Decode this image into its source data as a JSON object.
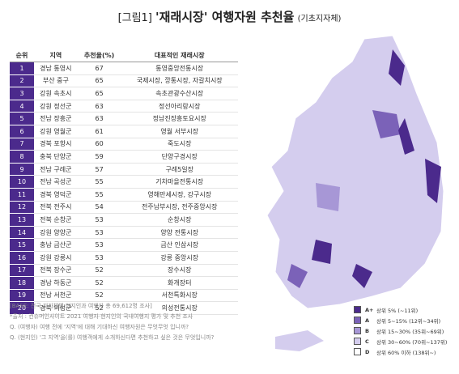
{
  "header": {
    "figure": "[그림1]",
    "title": "'재래시장' 여행자원 추천율",
    "subtitle": "(기초지자체)"
  },
  "table": {
    "columns": [
      "순위",
      "지역",
      "추천율(%)",
      "대표적인 재래시장"
    ],
    "rows": [
      [
        "1",
        "경남 통영시",
        "67",
        "통영중앙전통시장"
      ],
      [
        "2",
        "부산 중구",
        "65",
        "국제시장, 깡통시장, 자갈치시장"
      ],
      [
        "3",
        "강원 속초시",
        "65",
        "속초관광수산시장"
      ],
      [
        "4",
        "강원 정선군",
        "63",
        "정선아리랑시장"
      ],
      [
        "5",
        "전남 장흥군",
        "63",
        "정남진장흥토요시장"
      ],
      [
        "6",
        "강원 영월군",
        "61",
        "영월 서부시장"
      ],
      [
        "7",
        "경북 포항시",
        "60",
        "죽도시장"
      ],
      [
        "8",
        "충북 단양군",
        "59",
        "단양구경시장"
      ],
      [
        "9",
        "전남 구례군",
        "57",
        "구례5일장"
      ],
      [
        "10",
        "전남 곡성군",
        "55",
        "기차마을전통시장"
      ],
      [
        "11",
        "경북 영덕군",
        "55",
        "영해만세시장, 강구시장"
      ],
      [
        "12",
        "전북 전주시",
        "54",
        "전주남부시장, 전주중앙시장"
      ],
      [
        "13",
        "전북 순창군",
        "53",
        "순창시장"
      ],
      [
        "14",
        "강원 양양군",
        "53",
        "양양 전통시장"
      ],
      [
        "15",
        "충남 금산군",
        "53",
        "금산 인삼시장"
      ],
      [
        "16",
        "강원 강릉시",
        "53",
        "강릉 중앙시장"
      ],
      [
        "17",
        "전북 장수군",
        "52",
        "장수시장"
      ],
      [
        "18",
        "경남 하동군",
        "52",
        "화개장터"
      ],
      [
        "19",
        "전남 서천군",
        "52",
        "서천특화시장"
      ],
      [
        "20",
        "경북 의성군",
        "52",
        "의성전통시장"
      ]
    ]
  },
  "notes": [
    "[BASE: 전국 지자체별 현지인과 여행자 총 69,612명 조사]",
    "*출처 : 컨슈머인사이트 2021 여행자·현지인의 국내여행지 평가 및 추천 조사",
    "Q. (여행자) 여행 전에 '지역'에 대해 기대하신 여행자원은 무엇무엇 입니까?",
    "Q. (현지인) '그 지역'을(를) 여행객에게 소개하신다면 추천하고 싶은 것은 무엇입니까?"
  ],
  "legend": [
    {
      "grade": "A+",
      "label": "상위 5% (~11위)",
      "color": "#4b2a8c"
    },
    {
      "grade": "A",
      "label": "상위 5~15% (12위~34위)",
      "color": "#7b62b8"
    },
    {
      "grade": "B",
      "label": "상위 15~30% (35위~69위)",
      "color": "#a797d6"
    },
    {
      "grade": "C",
      "label": "상위 30~60% (70위~137위)",
      "color": "#d4cdee"
    },
    {
      "grade": "D",
      "label": "상위 60% 이하 (138위~)",
      "color": "#ffffff"
    }
  ]
}
